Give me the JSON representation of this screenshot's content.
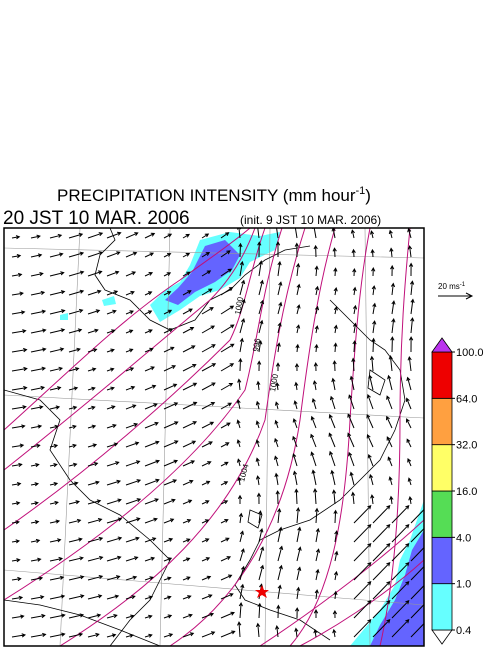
{
  "title": {
    "prefix": "PRECIPITATION INTENSITY (mm hour",
    "superscript": "-1",
    "suffix": ")"
  },
  "valid_time": "20 JST 10 MAR. 2006",
  "init_time": "(init. 9 JST 10 MAR. 2006)",
  "scale_label": {
    "text": "20 ms",
    "superscript": "-1"
  },
  "isobar_labels": [
    "1000",
    "996",
    "1000",
    "1004"
  ],
  "colorbar": {
    "levels": [
      {
        "value": 0.4,
        "label": "0.4"
      },
      {
        "value": 1,
        "label": "1.0"
      },
      {
        "value": 4,
        "label": "4.0"
      },
      {
        "value": 16,
        "label": "16.0"
      },
      {
        "value": 32,
        "label": "32.0"
      },
      {
        "value": 64,
        "label": "64.0"
      },
      {
        "value": 100,
        "label": "100.0"
      }
    ],
    "colors": [
      "#ffffff",
      "#66ffff",
      "#6464ff",
      "#55dd55",
      "#ffff66",
      "#ffa040",
      "#ee0000",
      "#bb33ee"
    ]
  }
}
